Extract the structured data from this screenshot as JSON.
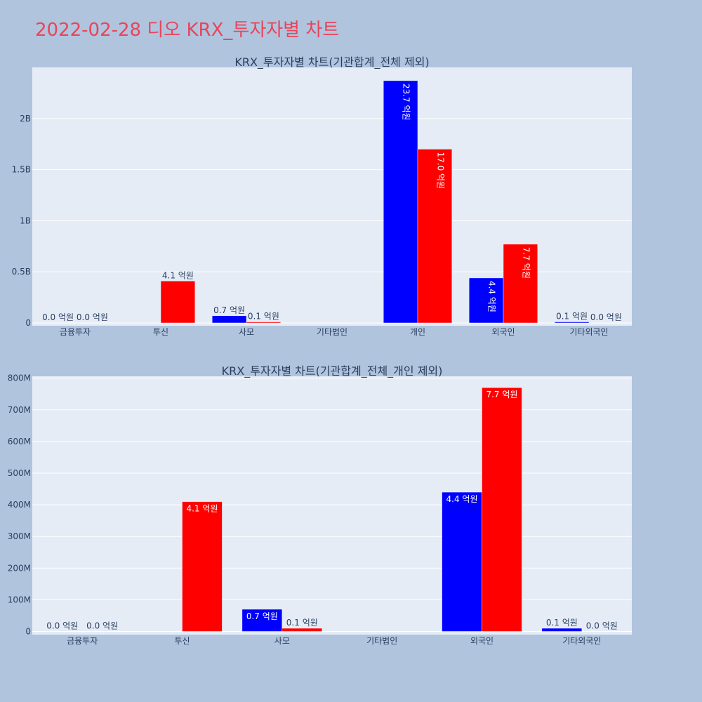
{
  "page": {
    "title": "2022-02-28 디오 KRX_투자자별 차트"
  },
  "colors": {
    "buy": "#0000ff",
    "sell": "#ff0000",
    "plot_bg": "#e5ecf6",
    "page_bg": "#b0c4de",
    "title": "#e8455a"
  },
  "chart_data": [
    {
      "type": "bar",
      "title": "KRX_투자자별 차트(기관합계_전체 제외)",
      "categories": [
        "금융투자",
        "투신",
        "사모",
        "기타법인",
        "개인",
        "외국인",
        "기타외국인"
      ],
      "yticks": [
        0,
        500000000,
        1000000000,
        1500000000,
        2000000000
      ],
      "ytick_labels": [
        "0",
        "0.5B",
        "1B",
        "1.5B",
        "2B"
      ],
      "ylim": [
        0,
        2500000000
      ],
      "grid": true,
      "legend": "none",
      "series": [
        {
          "color": "#0000ff",
          "values": [
            0,
            null,
            70000000,
            null,
            2370000000,
            440000000,
            10000000
          ],
          "labels": [
            "0.0 억원",
            "",
            "0.7 억원",
            "",
            "23.7 억원",
            "4.4 억원",
            "0.1 억원"
          ]
        },
        {
          "color": "#ff0000",
          "values": [
            0,
            410000000,
            10000000,
            null,
            1700000000,
            770000000,
            0
          ],
          "labels": [
            "0.0 억원",
            "4.1 억원",
            "0.1 억원",
            "",
            "17.0 억원",
            "7.7 억원",
            "0.0 억원"
          ]
        }
      ]
    },
    {
      "type": "bar",
      "title": "KRX_투자자별 차트(기관합계_전체_개인 제외)",
      "categories": [
        "금융투자",
        "투신",
        "사모",
        "기타법인",
        "외국인",
        "기타외국인"
      ],
      "yticks": [
        0,
        100000000,
        200000000,
        300000000,
        400000000,
        500000000,
        600000000,
        700000000,
        800000000
      ],
      "ytick_labels": [
        "0",
        "100M",
        "200M",
        "300M",
        "400M",
        "500M",
        "600M",
        "700M",
        "800M"
      ],
      "ylim": [
        0,
        806000000
      ],
      "grid": true,
      "legend": "none",
      "series": [
        {
          "color": "#0000ff",
          "values": [
            0,
            null,
            70000000,
            null,
            440000000,
            10000000
          ],
          "labels": [
            "0.0 억원",
            "",
            "0.7 억원",
            "",
            "4.4 억원",
            "0.1 억원"
          ]
        },
        {
          "color": "#ff0000",
          "values": [
            0,
            410000000,
            10000000,
            null,
            770000000,
            0
          ],
          "labels": [
            "0.0 억원",
            "4.1 억원",
            "0.1 억원",
            "",
            "7.7 억원",
            "0.0 억원"
          ]
        }
      ]
    }
  ]
}
